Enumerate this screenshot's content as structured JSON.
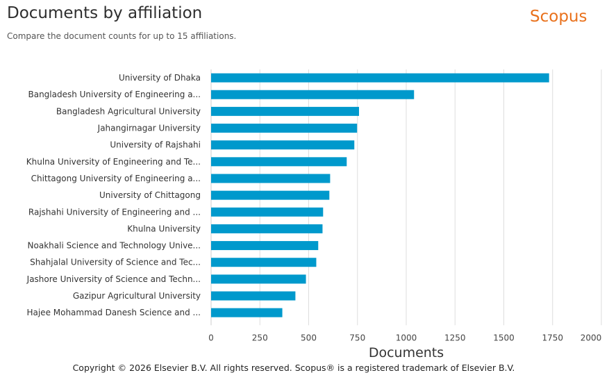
{
  "header": {
    "title": "Documents by affiliation",
    "subtitle": "Compare the document counts for up to 15 affiliations.",
    "brand": "Scopus"
  },
  "footer": {
    "copyright": "Copyright © 2026 Elsevier B.V. All rights reserved. Scopus® is a registered trademark of Elsevier B.V."
  },
  "colors": {
    "bar": "#0099cc",
    "brand": "#e9711c",
    "grid": "#dddddd"
  },
  "chart_data": {
    "type": "bar",
    "orientation": "horizontal",
    "title": "Documents by affiliation",
    "xlabel": "Documents",
    "ylabel": "",
    "xlim": [
      0,
      2000
    ],
    "xticks": [
      0,
      250,
      500,
      750,
      1000,
      1250,
      1500,
      1750,
      2000
    ],
    "grid": true,
    "categories": [
      "University of Dhaka",
      "Bangladesh University of Engineering a...",
      "Bangladesh Agricultural University",
      "Jahangirnagar University",
      "University of Rajshahi",
      "Khulna University of Engineering and Te...",
      "Chittagong University of Engineering a...",
      "University of Chittagong",
      "Rajshahi University of Engineering and ...",
      "Khulna University",
      "Noakhali Science and Technology Unive...",
      "Shahjalal University of Science and Tec...",
      "Jashore University of Science and Techn...",
      "Gazipur Agricultural University",
      "Hajee Mohammad Danesh Science and ..."
    ],
    "values": [
      1732,
      1040,
      758,
      748,
      734,
      695,
      610,
      606,
      574,
      571,
      549,
      539,
      486,
      432,
      365
    ]
  }
}
